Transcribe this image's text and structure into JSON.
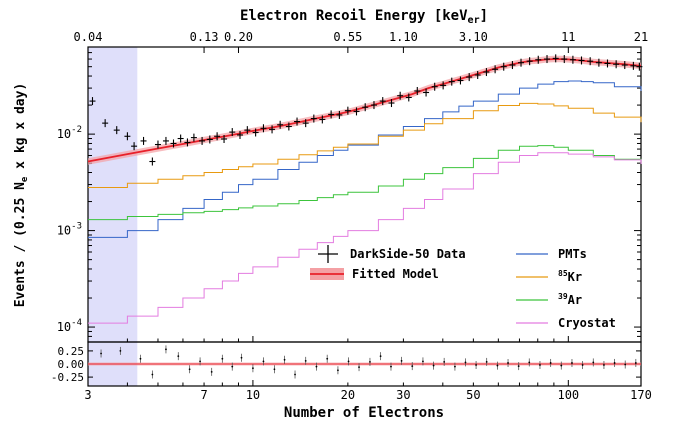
{
  "chart_data": [
    {
      "type": "line",
      "top_axis": {
        "label": "Electron Recoil Energy [keV",
        "label_sub": "er",
        "label_close": "]",
        "ticks": [
          {
            "x": 3,
            "label": "0.04"
          },
          {
            "x": 7,
            "label": "0.13"
          },
          {
            "x": 9,
            "label": "0.20"
          },
          {
            "x": 20,
            "label": "0.55"
          },
          {
            "x": 30,
            "label": "1.10"
          },
          {
            "x": 50,
            "label": "3.10"
          },
          {
            "x": 100,
            "label": "11"
          },
          {
            "x": 170,
            "label": "21"
          }
        ]
      },
      "ylabel": {
        "pre": "Events / (0.25 N",
        "sub": "e",
        "post": " x kg x day)"
      },
      "xlim": [
        3,
        170
      ],
      "ylim": [
        7e-05,
        0.08
      ],
      "yscale": "log",
      "xscale": "log",
      "y_ticks": [
        {
          "v": 0.01,
          "base": "10",
          "exp": "-2"
        },
        {
          "v": 0.001,
          "base": "10",
          "exp": "-3"
        },
        {
          "v": 0.0001,
          "base": "10",
          "exp": "-4"
        }
      ],
      "shaded_region": {
        "x0": 3,
        "x1": 4.3,
        "color": "#dcdcfa"
      },
      "data_series": {
        "name": "DarkSide-50 Data",
        "color": "#000000",
        "points": [
          [
            3.1,
            0.022
          ],
          [
            3.4,
            0.013
          ],
          [
            3.7,
            0.011
          ],
          [
            4.0,
            0.0095
          ],
          [
            4.2,
            0.0075
          ],
          [
            4.5,
            0.0085
          ],
          [
            4.8,
            0.0052
          ],
          [
            5.0,
            0.0078
          ],
          [
            5.3,
            0.0085
          ],
          [
            5.6,
            0.008
          ],
          [
            5.9,
            0.009
          ],
          [
            6.2,
            0.0082
          ],
          [
            6.5,
            0.0092
          ],
          [
            6.9,
            0.0085
          ],
          [
            7.3,
            0.0088
          ],
          [
            7.7,
            0.0095
          ],
          [
            8.1,
            0.0089
          ],
          [
            8.6,
            0.0105
          ],
          [
            9.1,
            0.0098
          ],
          [
            9.6,
            0.011
          ],
          [
            10.2,
            0.0104
          ],
          [
            10.8,
            0.0115
          ],
          [
            11.5,
            0.0112
          ],
          [
            12.2,
            0.0125
          ],
          [
            13.0,
            0.012
          ],
          [
            13.8,
            0.0135
          ],
          [
            14.7,
            0.013
          ],
          [
            15.6,
            0.0145
          ],
          [
            16.6,
            0.0142
          ],
          [
            17.7,
            0.016
          ],
          [
            18.8,
            0.0158
          ],
          [
            20.0,
            0.0175
          ],
          [
            21.3,
            0.0172
          ],
          [
            22.7,
            0.019
          ],
          [
            24.2,
            0.02
          ],
          [
            25.8,
            0.022
          ],
          [
            27.5,
            0.021
          ],
          [
            29.3,
            0.025
          ],
          [
            31.2,
            0.024
          ],
          [
            33.2,
            0.028
          ],
          [
            35.4,
            0.027
          ],
          [
            37.7,
            0.031
          ],
          [
            40.1,
            0.032
          ],
          [
            42.7,
            0.035
          ],
          [
            45.5,
            0.036
          ],
          [
            48.5,
            0.039
          ],
          [
            51.6,
            0.041
          ],
          [
            55.0,
            0.044
          ],
          [
            58.6,
            0.047
          ],
          [
            62.4,
            0.05
          ],
          [
            66.5,
            0.052
          ],
          [
            70.8,
            0.055
          ],
          [
            75.4,
            0.057
          ],
          [
            80.3,
            0.059
          ],
          [
            85.6,
            0.06
          ],
          [
            91.2,
            0.061
          ],
          [
            97.1,
            0.06
          ],
          [
            103.4,
            0.059
          ],
          [
            110.1,
            0.058
          ],
          [
            117.3,
            0.057
          ],
          [
            125.0,
            0.055
          ],
          [
            133.1,
            0.054
          ],
          [
            141.8,
            0.053
          ],
          [
            151.0,
            0.052
          ],
          [
            160.8,
            0.051
          ],
          [
            168.0,
            0.05
          ]
        ]
      },
      "fit_series": {
        "name": "Fitted Model",
        "color": "#e8202a",
        "points": [
          [
            3,
            0.0052
          ],
          [
            4,
            0.0062
          ],
          [
            5,
            0.0071
          ],
          [
            6,
            0.0079
          ],
          [
            7,
            0.0087
          ],
          [
            8,
            0.0094
          ],
          [
            9,
            0.0101
          ],
          [
            10,
            0.0108
          ],
          [
            12,
            0.012
          ],
          [
            14,
            0.0133
          ],
          [
            16,
            0.0146
          ],
          [
            18,
            0.0158
          ],
          [
            20,
            0.017
          ],
          [
            24,
            0.02
          ],
          [
            28,
            0.023
          ],
          [
            32,
            0.026
          ],
          [
            36,
            0.03
          ],
          [
            40,
            0.033
          ],
          [
            45,
            0.037
          ],
          [
            50,
            0.041
          ],
          [
            55,
            0.045
          ],
          [
            60,
            0.049
          ],
          [
            65,
            0.052
          ],
          [
            70,
            0.055
          ],
          [
            75,
            0.057
          ],
          [
            80,
            0.058
          ],
          [
            85,
            0.0595
          ],
          [
            90,
            0.06
          ],
          [
            95,
            0.06
          ],
          [
            100,
            0.0595
          ],
          [
            110,
            0.058
          ],
          [
            120,
            0.056
          ],
          [
            130,
            0.055
          ],
          [
            140,
            0.054
          ],
          [
            150,
            0.053
          ],
          [
            170,
            0.051
          ]
        ]
      },
      "series": [
        {
          "name": "PMTs",
          "color": "#3566c8",
          "values": [
            [
              3,
              0.00085
            ],
            [
              4,
              0.001
            ],
            [
              5,
              0.0013
            ],
            [
              6,
              0.0017
            ],
            [
              7,
              0.0021
            ],
            [
              8,
              0.0025
            ],
            [
              9,
              0.003
            ],
            [
              10,
              0.0034
            ],
            [
              12,
              0.0043
            ],
            [
              14,
              0.0051
            ],
            [
              16,
              0.006
            ],
            [
              18,
              0.0068
            ],
            [
              20,
              0.0077
            ],
            [
              25,
              0.0098
            ],
            [
              30,
              0.012
            ],
            [
              35,
              0.0145
            ],
            [
              40,
              0.017
            ],
            [
              45,
              0.0195
            ],
            [
              50,
              0.022
            ],
            [
              60,
              0.026
            ],
            [
              70,
              0.03
            ],
            [
              80,
              0.033
            ],
            [
              90,
              0.035
            ],
            [
              100,
              0.0355
            ],
            [
              110,
              0.035
            ],
            [
              120,
              0.034
            ],
            [
              140,
              0.031
            ],
            [
              170,
              0.028
            ]
          ]
        },
        {
          "name": "Kr",
          "name_sup": "85",
          "color": "#e89a10",
          "values": [
            [
              3,
              0.0028
            ],
            [
              4,
              0.0031
            ],
            [
              5,
              0.0034
            ],
            [
              6,
              0.0037
            ],
            [
              7,
              0.004
            ],
            [
              8,
              0.0043
            ],
            [
              9,
              0.0046
            ],
            [
              10,
              0.0049
            ],
            [
              12,
              0.0055
            ],
            [
              14,
              0.0061
            ],
            [
              16,
              0.0067
            ],
            [
              18,
              0.0073
            ],
            [
              20,
              0.0079
            ],
            [
              25,
              0.0095
            ],
            [
              30,
              0.011
            ],
            [
              35,
              0.0128
            ],
            [
              40,
              0.0145
            ],
            [
              50,
              0.0175
            ],
            [
              60,
              0.0198
            ],
            [
              70,
              0.0208
            ],
            [
              80,
              0.0205
            ],
            [
              90,
              0.0196
            ],
            [
              100,
              0.0185
            ],
            [
              120,
              0.0165
            ],
            [
              140,
              0.015
            ],
            [
              170,
              0.0133
            ]
          ]
        },
        {
          "name": "Ar",
          "name_sup": "39",
          "color": "#3cc43c",
          "values": [
            [
              3,
              0.0013
            ],
            [
              4,
              0.0014
            ],
            [
              5,
              0.00147
            ],
            [
              6,
              0.00153
            ],
            [
              7,
              0.00158
            ],
            [
              8,
              0.00165
            ],
            [
              9,
              0.00172
            ],
            [
              10,
              0.0018
            ],
            [
              12,
              0.0019
            ],
            [
              14,
              0.00205
            ],
            [
              16,
              0.0022
            ],
            [
              18,
              0.00235
            ],
            [
              20,
              0.0025
            ],
            [
              25,
              0.0029
            ],
            [
              30,
              0.0034
            ],
            [
              35,
              0.0039
            ],
            [
              40,
              0.0045
            ],
            [
              50,
              0.0056
            ],
            [
              60,
              0.0068
            ],
            [
              70,
              0.0075
            ],
            [
              80,
              0.0076
            ],
            [
              90,
              0.0073
            ],
            [
              100,
              0.0068
            ],
            [
              120,
              0.006
            ],
            [
              140,
              0.0055
            ],
            [
              170,
              0.005
            ]
          ]
        },
        {
          "name": "Cryostat",
          "color": "#e37ce0",
          "values": [
            [
              3,
              0.00011
            ],
            [
              4,
              0.00013
            ],
            [
              5,
              0.00016
            ],
            [
              6,
              0.0002
            ],
            [
              7,
              0.00025
            ],
            [
              8,
              0.0003
            ],
            [
              9,
              0.00036
            ],
            [
              10,
              0.00042
            ],
            [
              12,
              0.00053
            ],
            [
              14,
              0.00064
            ],
            [
              16,
              0.00075
            ],
            [
              18,
              0.00087
            ],
            [
              20,
              0.001
            ],
            [
              25,
              0.0013
            ],
            [
              30,
              0.0017
            ],
            [
              35,
              0.0021
            ],
            [
              40,
              0.0027
            ],
            [
              50,
              0.0039
            ],
            [
              60,
              0.0051
            ],
            [
              70,
              0.006
            ],
            [
              80,
              0.0064
            ],
            [
              90,
              0.0064
            ],
            [
              100,
              0.0062
            ],
            [
              120,
              0.0058
            ],
            [
              140,
              0.0054
            ],
            [
              170,
              0.0049
            ]
          ]
        }
      ]
    },
    {
      "type": "scatter",
      "xlabel": "Number of Electrons",
      "xlim": [
        3,
        170
      ],
      "ylim": [
        -0.42,
        0.42
      ],
      "y_ticks": [
        "0.25",
        "0.00",
        "-0.25"
      ],
      "y_tick_values": [
        0.25,
        0.0,
        -0.25
      ],
      "x_ticks": [
        {
          "v": 3,
          "label": "3"
        },
        {
          "v": 7,
          "label": "7"
        },
        {
          "v": 10,
          "label": "10"
        },
        {
          "v": 20,
          "label": "20"
        },
        {
          "v": 30,
          "label": "30"
        },
        {
          "v": 50,
          "label": "50"
        },
        {
          "v": 100,
          "label": "100"
        },
        {
          "v": 170,
          "label": "170"
        }
      ],
      "residuals": [
        [
          3.3,
          0.2
        ],
        [
          3.8,
          0.25
        ],
        [
          4.4,
          0.1
        ],
        [
          4.8,
          -0.2
        ],
        [
          5.3,
          0.28
        ],
        [
          5.8,
          0.15
        ],
        [
          6.3,
          -0.1
        ],
        [
          6.8,
          0.05
        ],
        [
          7.4,
          -0.15
        ],
        [
          8.0,
          0.1
        ],
        [
          8.6,
          -0.05
        ],
        [
          9.2,
          0.12
        ],
        [
          10.0,
          -0.08
        ],
        [
          10.8,
          0.05
        ],
        [
          11.7,
          -0.1
        ],
        [
          12.6,
          0.08
        ],
        [
          13.6,
          -0.2
        ],
        [
          14.7,
          0.06
        ],
        [
          15.9,
          -0.05
        ],
        [
          17.2,
          0.1
        ],
        [
          18.6,
          -0.12
        ],
        [
          20.1,
          0.05
        ],
        [
          21.7,
          -0.06
        ],
        [
          23.5,
          0.04
        ],
        [
          25.4,
          0.15
        ],
        [
          27.4,
          -0.05
        ],
        [
          29.6,
          0.06
        ],
        [
          32.0,
          -0.04
        ],
        [
          34.6,
          0.05
        ],
        [
          37.4,
          -0.03
        ],
        [
          40.4,
          0.04
        ],
        [
          43.7,
          -0.05
        ],
        [
          47.2,
          0.03
        ],
        [
          51.0,
          -0.02
        ],
        [
          55.1,
          0.04
        ],
        [
          59.6,
          -0.03
        ],
        [
          64.4,
          0.02
        ],
        [
          69.6,
          -0.04
        ],
        [
          75.2,
          0.03
        ],
        [
          81.3,
          -0.02
        ],
        [
          87.9,
          0.02
        ],
        [
          95.0,
          -0.03
        ],
        [
          102.7,
          0.02
        ],
        [
          111.0,
          -0.02
        ],
        [
          120.0,
          0.03
        ],
        [
          129.7,
          -0.02
        ],
        [
          140.2,
          0.02
        ],
        [
          151.5,
          -0.01
        ],
        [
          163.7,
          0.02
        ]
      ]
    }
  ]
}
